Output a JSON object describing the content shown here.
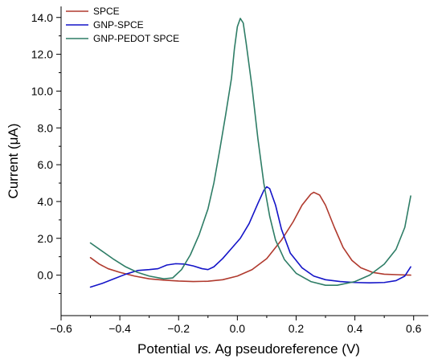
{
  "chart_data": {
    "type": "line",
    "title": "",
    "xlabel_parts": [
      {
        "text": "Potential ",
        "italic": false
      },
      {
        "text": "vs.",
        "italic": true
      },
      {
        "text": " Ag pseudoreference (V)",
        "italic": false
      }
    ],
    "ylabel": "Current (μA)",
    "xlim": [
      -0.6,
      0.65
    ],
    "ylim": [
      -2.2,
      14.6
    ],
    "xticks": [
      -0.6,
      -0.4,
      -0.2,
      0.0,
      0.2,
      0.4,
      0.6
    ],
    "xtick_labels": [
      "−0.6",
      "−0.4",
      "−0.2",
      "0.0",
      "0.2",
      "0.4",
      "0.6"
    ],
    "yticks": [
      0.0,
      2.0,
      4.0,
      6.0,
      8.0,
      10.0,
      12.0,
      14.0
    ],
    "ytick_labels": [
      "0.0",
      "2.0",
      "4.0",
      "6.0",
      "8.0",
      "10.0",
      "12.0",
      "14.0"
    ],
    "grid": false,
    "legend_position": "top-left",
    "series": [
      {
        "name": "SPCE",
        "color": "#b03a2e",
        "points": [
          [
            -0.5,
            0.95
          ],
          [
            -0.47,
            0.6
          ],
          [
            -0.44,
            0.35
          ],
          [
            -0.4,
            0.15
          ],
          [
            -0.35,
            -0.05
          ],
          [
            -0.3,
            -0.2
          ],
          [
            -0.25,
            -0.27
          ],
          [
            -0.2,
            -0.32
          ],
          [
            -0.15,
            -0.35
          ],
          [
            -0.1,
            -0.33
          ],
          [
            -0.05,
            -0.25
          ],
          [
            0.0,
            -0.05
          ],
          [
            0.05,
            0.3
          ],
          [
            0.1,
            0.9
          ],
          [
            0.15,
            1.9
          ],
          [
            0.19,
            2.9
          ],
          [
            0.22,
            3.8
          ],
          [
            0.25,
            4.4
          ],
          [
            0.26,
            4.5
          ],
          [
            0.28,
            4.35
          ],
          [
            0.3,
            3.8
          ],
          [
            0.33,
            2.6
          ],
          [
            0.36,
            1.5
          ],
          [
            0.39,
            0.8
          ],
          [
            0.42,
            0.4
          ],
          [
            0.46,
            0.15
          ],
          [
            0.5,
            0.05
          ],
          [
            0.55,
            0.02
          ],
          [
            0.59,
            0.0
          ]
        ]
      },
      {
        "name": "GNP-SPCE",
        "color": "#1414c8",
        "points": [
          [
            -0.5,
            -0.65
          ],
          [
            -0.46,
            -0.45
          ],
          [
            -0.42,
            -0.2
          ],
          [
            -0.38,
            0.05
          ],
          [
            -0.34,
            0.25
          ],
          [
            -0.3,
            0.3
          ],
          [
            -0.27,
            0.35
          ],
          [
            -0.24,
            0.55
          ],
          [
            -0.21,
            0.62
          ],
          [
            -0.18,
            0.6
          ],
          [
            -0.15,
            0.5
          ],
          [
            -0.12,
            0.35
          ],
          [
            -0.1,
            0.3
          ],
          [
            -0.08,
            0.45
          ],
          [
            -0.05,
            0.9
          ],
          [
            -0.02,
            1.45
          ],
          [
            0.01,
            2.0
          ],
          [
            0.04,
            2.8
          ],
          [
            0.07,
            3.9
          ],
          [
            0.09,
            4.6
          ],
          [
            0.1,
            4.8
          ],
          [
            0.11,
            4.7
          ],
          [
            0.13,
            3.8
          ],
          [
            0.15,
            2.5
          ],
          [
            0.18,
            1.2
          ],
          [
            0.22,
            0.4
          ],
          [
            0.26,
            -0.05
          ],
          [
            0.3,
            -0.25
          ],
          [
            0.35,
            -0.35
          ],
          [
            0.4,
            -0.4
          ],
          [
            0.45,
            -0.42
          ],
          [
            0.5,
            -0.4
          ],
          [
            0.54,
            -0.3
          ],
          [
            0.57,
            -0.05
          ],
          [
            0.59,
            0.45
          ]
        ]
      },
      {
        "name": "GNP-PEDOT SPCE",
        "color": "#2e7d66",
        "points": [
          [
            -0.5,
            1.75
          ],
          [
            -0.46,
            1.3
          ],
          [
            -0.42,
            0.85
          ],
          [
            -0.38,
            0.45
          ],
          [
            -0.34,
            0.15
          ],
          [
            -0.3,
            -0.05
          ],
          [
            -0.25,
            -0.2
          ],
          [
            -0.22,
            -0.15
          ],
          [
            -0.19,
            0.3
          ],
          [
            -0.16,
            1.1
          ],
          [
            -0.13,
            2.2
          ],
          [
            -0.1,
            3.6
          ],
          [
            -0.08,
            5.0
          ],
          [
            -0.06,
            6.8
          ],
          [
            -0.04,
            8.7
          ],
          [
            -0.02,
            10.7
          ],
          [
            -0.01,
            12.3
          ],
          [
            0.0,
            13.5
          ],
          [
            0.01,
            13.95
          ],
          [
            0.02,
            13.7
          ],
          [
            0.03,
            12.6
          ],
          [
            0.05,
            10.2
          ],
          [
            0.07,
            7.4
          ],
          [
            0.09,
            5.0
          ],
          [
            0.11,
            3.2
          ],
          [
            0.13,
            1.9
          ],
          [
            0.16,
            0.85
          ],
          [
            0.2,
            0.1
          ],
          [
            0.25,
            -0.35
          ],
          [
            0.3,
            -0.55
          ],
          [
            0.34,
            -0.55
          ],
          [
            0.4,
            -0.35
          ],
          [
            0.45,
            0.0
          ],
          [
            0.5,
            0.6
          ],
          [
            0.54,
            1.4
          ],
          [
            0.57,
            2.6
          ],
          [
            0.59,
            4.3
          ]
        ]
      }
    ]
  }
}
